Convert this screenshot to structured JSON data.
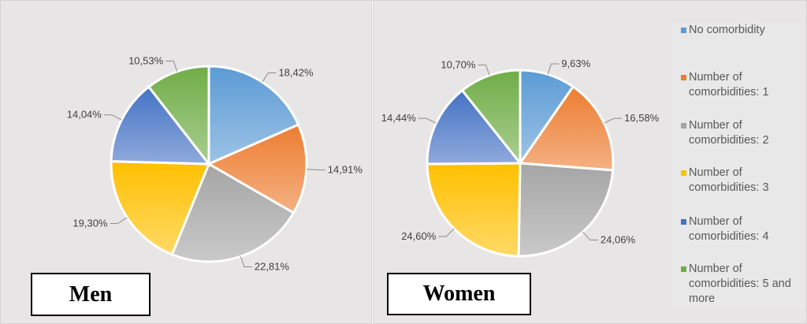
{
  "legend": [
    {
      "label": "No comorbidity",
      "color": "#5b9bd5"
    },
    {
      "label": "Number of comorbidities: 1",
      "color": "#ed7d31"
    },
    {
      "label": "Number of comorbidities: 2",
      "color": "#a5a5a5"
    },
    {
      "label": "Number of comorbidities: 3",
      "color": "#ffc000"
    },
    {
      "label": "Number of comorbidities: 4",
      "color": "#4472c4"
    },
    {
      "label": "Number of comorbidities: 5 and more",
      "color": "#70ad47"
    }
  ],
  "chart_data": [
    {
      "type": "pie",
      "title": "Men",
      "categories": [
        "No comorbidity",
        "Number of comorbidities: 1",
        "Number of comorbidities: 2",
        "Number of comorbidities: 3",
        "Number of comorbidities: 4",
        "Number of comorbidities: 5 and more"
      ],
      "values": [
        18.42,
        14.91,
        22.81,
        19.3,
        14.04,
        10.53
      ],
      "labels": [
        "18,42%",
        "14,91%",
        "22,81%",
        "19,30%",
        "14,04%",
        "10,53%"
      ]
    },
    {
      "type": "pie",
      "title": "Women",
      "categories": [
        "No comorbidity",
        "Number of comorbidities: 1",
        "Number of comorbidities: 2",
        "Number of comorbidities: 3",
        "Number of comorbidities: 4",
        "Number of comorbidities: 5 and more"
      ],
      "values": [
        9.63,
        16.58,
        24.06,
        24.6,
        14.44,
        10.7
      ],
      "labels": [
        "9,63%",
        "16,58%",
        "24,06%",
        "24,60%",
        "14,44%",
        "10,70%"
      ]
    }
  ]
}
